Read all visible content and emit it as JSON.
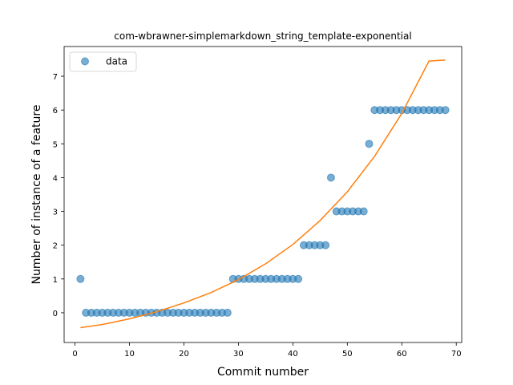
{
  "chart_data": {
    "type": "scatter",
    "title": "com-wbrawner-simplemarkdown_string_template-exponential",
    "xlabel": "Commit number",
    "ylabel": "Number of instance of a feature",
    "xlim": [
      -2,
      71
    ],
    "ylim": [
      -0.88,
      7.88
    ],
    "xticks": [
      0,
      10,
      20,
      30,
      40,
      50,
      60,
      70
    ],
    "yticks": [
      0,
      1,
      2,
      3,
      4,
      5,
      6,
      7
    ],
    "legend": {
      "entries": [
        "data"
      ],
      "placement": "top-left"
    },
    "grid": false,
    "colors": {
      "data": "#1f77b4",
      "fit": "#ff7f0e"
    },
    "series": [
      {
        "name": "data",
        "kind": "scatter",
        "x": [
          1,
          2,
          3,
          4,
          5,
          6,
          7,
          8,
          9,
          10,
          11,
          12,
          13,
          14,
          15,
          16,
          17,
          18,
          19,
          20,
          21,
          22,
          23,
          24,
          25,
          26,
          27,
          28,
          29,
          30,
          31,
          32,
          33,
          34,
          35,
          36,
          37,
          38,
          39,
          40,
          41,
          42,
          43,
          44,
          45,
          46,
          47,
          48,
          49,
          50,
          51,
          52,
          53,
          54,
          55,
          56,
          57,
          58,
          59,
          60,
          61,
          62,
          63,
          64,
          65,
          66,
          67,
          68
        ],
        "y": [
          1,
          0,
          0,
          0,
          0,
          0,
          0,
          0,
          0,
          0,
          0,
          0,
          0,
          0,
          0,
          0,
          0,
          0,
          0,
          0,
          0,
          0,
          0,
          0,
          0,
          0,
          0,
          0,
          1,
          1,
          1,
          1,
          1,
          1,
          1,
          1,
          1,
          1,
          1,
          1,
          1,
          2,
          2,
          2,
          2,
          2,
          4,
          3,
          3,
          3,
          3,
          3,
          3,
          5,
          6,
          6,
          6,
          6,
          6,
          6,
          6,
          6,
          6,
          6,
          6,
          6,
          6,
          6
        ]
      },
      {
        "kind": "line",
        "x": [
          1,
          5,
          10,
          15,
          20,
          25,
          30,
          35,
          40,
          45,
          50,
          55,
          60,
          65,
          68
        ],
        "y": [
          -0.44,
          -0.35,
          -0.18,
          0.03,
          0.29,
          0.6,
          0.98,
          1.45,
          2.02,
          2.73,
          3.58,
          4.63,
          5.9,
          7.45,
          7.48
        ]
      }
    ]
  }
}
